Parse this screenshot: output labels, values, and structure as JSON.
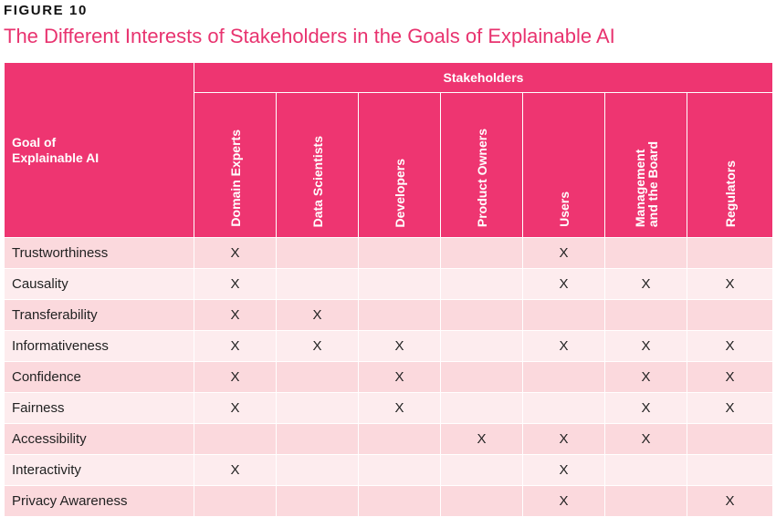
{
  "figure_label": "FIGURE 10",
  "title": "The Different Interests of Stakeholders in the Goals of Explainable AI",
  "table": {
    "goal_header": "Goal of Explainable AI",
    "group_header": "Stakeholders",
    "stakeholders": [
      "Domain Experts",
      "Data Scientists",
      "Developers",
      "Product Owners",
      "Users",
      "Management\nand the Board",
      "Regulators"
    ],
    "rows": [
      {
        "goal": "Trustworthiness",
        "cells": [
          "X",
          "",
          "",
          "",
          "X",
          "",
          ""
        ]
      },
      {
        "goal": "Causality",
        "cells": [
          "X",
          "",
          "",
          "",
          "X",
          "X",
          "X"
        ]
      },
      {
        "goal": "Transferability",
        "cells": [
          "X",
          "X",
          "",
          "",
          "",
          "",
          ""
        ]
      },
      {
        "goal": "Informativeness",
        "cells": [
          "X",
          "X",
          "X",
          "",
          "X",
          "X",
          "X"
        ]
      },
      {
        "goal": "Confidence",
        "cells": [
          "X",
          "",
          "X",
          "",
          "",
          "X",
          "X"
        ]
      },
      {
        "goal": "Fairness",
        "cells": [
          "X",
          "",
          "X",
          "",
          "",
          "X",
          "X"
        ]
      },
      {
        "goal": "Accessibility",
        "cells": [
          "",
          "",
          "",
          "X",
          "X",
          "X",
          ""
        ]
      },
      {
        "goal": "Interactivity",
        "cells": [
          "X",
          "",
          "",
          "",
          "X",
          "",
          ""
        ]
      },
      {
        "goal": "Privacy Awareness",
        "cells": [
          "",
          "",
          "",
          "",
          "X",
          "",
          "X"
        ]
      }
    ]
  },
  "colors": {
    "accent": "#ee3571",
    "row_odd": "#fbd9dd",
    "row_even": "#fdecee"
  }
}
